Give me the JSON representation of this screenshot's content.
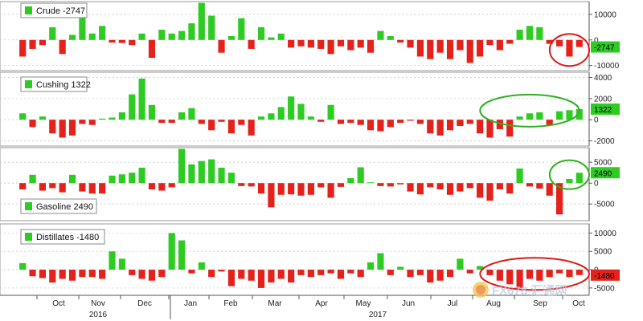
{
  "colors": {
    "positive": "#2ecc23",
    "negative": "#e4221b",
    "axis": "#555555",
    "grid": "#c8c8c8",
    "panel_border": "#9a9a9a",
    "highlight_red": "#e01818",
    "highlight_green": "#2fb020",
    "last_label_bg": "#2ecc23"
  },
  "x_axis": {
    "months": [
      "Oct",
      "Nov",
      "Dec",
      "Jan",
      "Feb",
      "Mar",
      "Apr",
      "May",
      "Jun",
      "Jul",
      "Aug",
      "Sep",
      "Oct"
    ],
    "years": [
      "2016",
      "2017"
    ]
  },
  "watermark": "FX678 汇通网",
  "chart_data": [
    {
      "type": "bar",
      "legend": "Crude -2747",
      "last_value_label": "-2747",
      "last_value_color": "#2ecc23",
      "ylim": [
        -12000,
        15000
      ],
      "yticks": [
        10000,
        0,
        -10000
      ],
      "ytick_labels": [
        "10000",
        "0",
        "-10000"
      ],
      "highlight": {
        "color": "red",
        "from_bar": 54,
        "to_bar": 57
      },
      "values": [
        -6500,
        -3500,
        -2000,
        5000,
        -5500,
        2000,
        9500,
        2500,
        5500,
        -1000,
        -1200,
        -2000,
        2500,
        -7000,
        4000,
        2500,
        3500,
        6500,
        14500,
        9500,
        -5000,
        1500,
        8500,
        -3500,
        5000,
        1000,
        2500,
        -3000,
        -2500,
        -3000,
        -3500,
        -5500,
        -2500,
        -4000,
        -3000,
        -5000,
        3500,
        1500,
        -1000,
        -3000,
        -6500,
        -7500,
        -5000,
        -7500,
        -4000,
        -9000,
        -6500,
        -2000,
        -4000,
        -1500,
        4000,
        5500,
        5000,
        -1500,
        -2500,
        -6500,
        -2747
      ]
    },
    {
      "type": "bar",
      "legend": "Cushing 1322",
      "last_value_label": "1322",
      "last_value_color": "#2ecc23",
      "ylim": [
        -2500,
        4500
      ],
      "yticks": [
        4000,
        2000,
        0,
        -2000
      ],
      "ytick_labels": [
        "4000",
        "2000",
        "0",
        "-2000"
      ],
      "highlight": {
        "color": "green",
        "from_bar": 47,
        "to_bar": 56
      },
      "values": [
        600,
        -700,
        300,
        -1300,
        -1700,
        -1500,
        -400,
        -500,
        100,
        200,
        700,
        2400,
        3900,
        1400,
        -300,
        -300,
        700,
        1100,
        -400,
        -1000,
        -200,
        -1300,
        -500,
        -1500,
        300,
        600,
        1200,
        2200,
        1500,
        300,
        -200,
        1400,
        -400,
        -300,
        -500,
        -1000,
        -1100,
        -700,
        -300,
        -100,
        -400,
        -1300,
        -1500,
        -1000,
        -600,
        -400,
        -1300,
        -1700,
        -900,
        -1600,
        300,
        600,
        700,
        -500,
        800,
        900,
        1000
      ]
    },
    {
      "type": "bar",
      "legend": "Gasoline 2490",
      "last_value_label": "2490",
      "last_value_color": "#2ecc23",
      "ylim": [
        -9000,
        8500
      ],
      "yticks": [
        5000,
        0,
        -5000
      ],
      "ytick_labels": [
        "5000",
        "0",
        "-5000"
      ],
      "highlight": {
        "color": "green",
        "from_bar": 54,
        "to_bar": 57
      },
      "values": [
        -1500,
        2000,
        -1800,
        -1200,
        -2200,
        2000,
        -2000,
        -2500,
        -2500,
        1800,
        2100,
        2500,
        3700,
        -1500,
        -1800,
        -1000,
        8200,
        4500,
        5300,
        5700,
        3700,
        2500,
        -700,
        -800,
        -2500,
        -5800,
        -2800,
        -2700,
        -3000,
        -2800,
        -1000,
        -3500,
        -900,
        1200,
        3800,
        200,
        -700,
        -800,
        -300,
        -2000,
        -2700,
        -1000,
        -1500,
        -2800,
        -2000,
        -1200,
        -3500,
        -4200,
        -1500,
        -2500,
        3500,
        -800,
        -1300,
        -3000,
        -7500,
        1000,
        2490
      ]
    },
    {
      "type": "bar",
      "legend": "Distillates -1480",
      "last_value_label": "-1480",
      "last_value_color": "#e4221b",
      "ylim": [
        -7000,
        12500
      ],
      "yticks": [
        10000,
        5000,
        0,
        -5000
      ],
      "ytick_labels": [
        "10000",
        "5000",
        "0",
        "-5000"
      ],
      "highlight": {
        "color": "red",
        "from_bar": 47,
        "to_bar": 57
      },
      "values": [
        1800,
        -1800,
        -2300,
        -3500,
        -2500,
        -3000,
        -2000,
        -2000,
        -2500,
        5000,
        3000,
        -1500,
        -2500,
        -3000,
        -2000,
        10000,
        8000,
        -1000,
        2000,
        -2000,
        -500,
        -4500,
        -2500,
        -3000,
        -5000,
        -3500,
        -2500,
        -3500,
        -1500,
        -2000,
        -1500,
        -1000,
        -2500,
        -1000,
        -2000,
        2000,
        4500,
        -1500,
        800,
        -2000,
        -1500,
        -3500,
        -3000,
        -2000,
        3000,
        -1000,
        1000,
        -1500,
        -3000,
        -4000,
        -5000,
        -2500,
        -3000,
        -2000,
        -1000,
        -2000,
        -1480
      ]
    }
  ]
}
